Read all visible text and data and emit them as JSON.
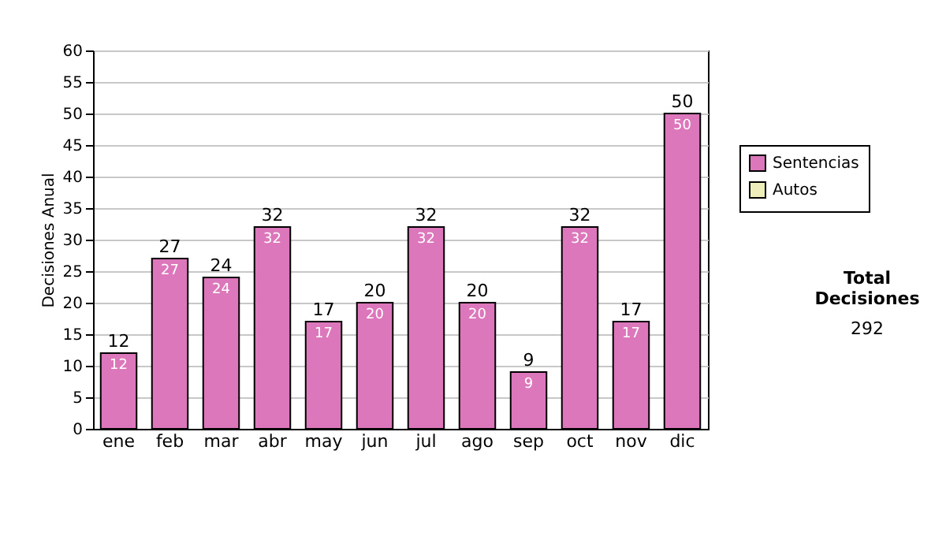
{
  "chart_data": {
    "type": "bar",
    "ylabel": "Decisiones Anual",
    "categories": [
      "ene",
      "feb",
      "mar",
      "abr",
      "may",
      "jun",
      "jul",
      "ago",
      "sep",
      "oct",
      "nov",
      "dic"
    ],
    "series": [
      {
        "name": "Sentencias",
        "color": "#dd77bb",
        "values": [
          12,
          27,
          24,
          32,
          17,
          20,
          32,
          20,
          9,
          32,
          17,
          50
        ]
      },
      {
        "name": "Autos",
        "color": "#eeeebb",
        "values": [
          null,
          null,
          null,
          null,
          null,
          null,
          null,
          null,
          null,
          null,
          null,
          null
        ]
      }
    ],
    "ylim": [
      0,
      60
    ],
    "yticks": [
      0,
      5,
      10,
      15,
      20,
      25,
      30,
      35,
      40,
      45,
      50,
      55,
      60
    ],
    "grid": "y",
    "legend": "top right",
    "data_labels": true,
    "totals": [
      "12",
      "27",
      "24",
      "32",
      "17",
      "20",
      "32",
      "20",
      "9",
      "32",
      "17",
      "50"
    ],
    "annotations": [
      "Total Decisiones",
      "292"
    ]
  }
}
